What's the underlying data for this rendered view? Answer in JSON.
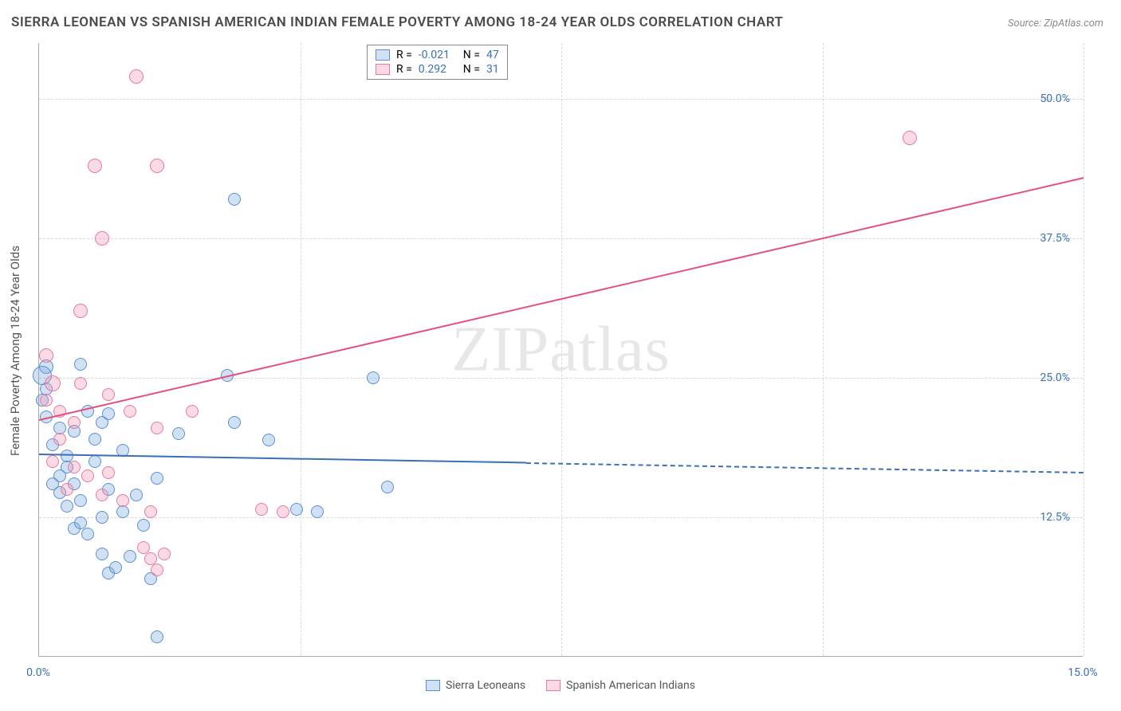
{
  "title": "SIERRA LEONEAN VS SPANISH AMERICAN INDIAN FEMALE POVERTY AMONG 18-24 YEAR OLDS CORRELATION CHART",
  "source": "Source: ZipAtlas.com",
  "watermark": "ZIPatlas",
  "y_axis_label": "Female Poverty Among 18-24 Year Olds",
  "chart": {
    "type": "scatter",
    "background_color": "#ffffff",
    "grid_color": "#d8d8d8",
    "axis_color": "#aaaaaa",
    "xlim": [
      0.0,
      15.0
    ],
    "ylim": [
      0.0,
      55.0
    ],
    "y_ticks": [
      {
        "v": 12.5,
        "label": "12.5%"
      },
      {
        "v": 25.0,
        "label": "25.0%"
      },
      {
        "v": 37.5,
        "label": "37.5%"
      },
      {
        "v": 50.0,
        "label": "50.0%"
      }
    ],
    "x_ticks": [
      {
        "v": 0.0,
        "label": "0.0%"
      },
      {
        "v": 3.75,
        "label": ""
      },
      {
        "v": 7.5,
        "label": ""
      },
      {
        "v": 11.25,
        "label": ""
      },
      {
        "v": 15.0,
        "label": "15.0%"
      }
    ],
    "series": [
      {
        "name": "Sierra Leoneans",
        "fill": "rgba(120,168,224,0.35)",
        "stroke": "#5b8fd6",
        "line_color": "#3b6fb6",
        "r_value": "-0.021",
        "n_value": "47",
        "trend": {
          "y_at_x0": 18.2,
          "y_at_xmax": 16.6,
          "solid_until_x": 7.0
        },
        "points": [
          {
            "x": 0.1,
            "y": 26.0,
            "r": 9
          },
          {
            "x": 0.05,
            "y": 25.2,
            "r": 12
          },
          {
            "x": 0.1,
            "y": 24.0,
            "r": 8
          },
          {
            "x": 0.05,
            "y": 23.0,
            "r": 8
          },
          {
            "x": 0.1,
            "y": 21.5,
            "r": 8
          },
          {
            "x": 0.3,
            "y": 20.5,
            "r": 8
          },
          {
            "x": 0.2,
            "y": 19.0,
            "r": 8
          },
          {
            "x": 0.4,
            "y": 18.0,
            "r": 8
          },
          {
            "x": 0.6,
            "y": 26.2,
            "r": 8
          },
          {
            "x": 0.7,
            "y": 22.0,
            "r": 8
          },
          {
            "x": 0.5,
            "y": 20.2,
            "r": 8
          },
          {
            "x": 0.8,
            "y": 19.5,
            "r": 8
          },
          {
            "x": 0.9,
            "y": 21.0,
            "r": 8
          },
          {
            "x": 0.4,
            "y": 17.0,
            "r": 8
          },
          {
            "x": 0.5,
            "y": 15.5,
            "r": 8
          },
          {
            "x": 0.3,
            "y": 16.2,
            "r": 8
          },
          {
            "x": 0.6,
            "y": 14.0,
            "r": 8
          },
          {
            "x": 0.8,
            "y": 17.5,
            "r": 8
          },
          {
            "x": 1.0,
            "y": 15.0,
            "r": 8
          },
          {
            "x": 1.2,
            "y": 13.0,
            "r": 8
          },
          {
            "x": 0.9,
            "y": 12.5,
            "r": 8
          },
          {
            "x": 0.4,
            "y": 13.5,
            "r": 8
          },
          {
            "x": 0.5,
            "y": 11.5,
            "r": 8
          },
          {
            "x": 0.7,
            "y": 11.0,
            "r": 8
          },
          {
            "x": 1.6,
            "y": 7.0,
            "r": 8
          },
          {
            "x": 1.0,
            "y": 7.5,
            "r": 8
          },
          {
            "x": 1.5,
            "y": 11.8,
            "r": 8
          },
          {
            "x": 1.3,
            "y": 9.0,
            "r": 8
          },
          {
            "x": 1.2,
            "y": 18.5,
            "r": 8
          },
          {
            "x": 2.8,
            "y": 41.0,
            "r": 8
          },
          {
            "x": 2.8,
            "y": 21.0,
            "r": 8
          },
          {
            "x": 3.3,
            "y": 19.4,
            "r": 8
          },
          {
            "x": 2.7,
            "y": 25.2,
            "r": 8
          },
          {
            "x": 4.0,
            "y": 13.0,
            "r": 8
          },
          {
            "x": 4.8,
            "y": 25.0,
            "r": 8
          },
          {
            "x": 5.0,
            "y": 15.2,
            "r": 8
          },
          {
            "x": 3.7,
            "y": 13.2,
            "r": 8
          },
          {
            "x": 1.7,
            "y": 1.8,
            "r": 8
          },
          {
            "x": 2.0,
            "y": 20.0,
            "r": 8
          },
          {
            "x": 1.7,
            "y": 16.0,
            "r": 8
          },
          {
            "x": 1.4,
            "y": 14.5,
            "r": 8
          },
          {
            "x": 0.9,
            "y": 9.2,
            "r": 8
          },
          {
            "x": 1.1,
            "y": 8.0,
            "r": 8
          },
          {
            "x": 0.3,
            "y": 14.7,
            "r": 8
          },
          {
            "x": 1.0,
            "y": 21.8,
            "r": 8
          },
          {
            "x": 0.6,
            "y": 12.0,
            "r": 8
          },
          {
            "x": 0.2,
            "y": 15.5,
            "r": 8
          }
        ]
      },
      {
        "name": "Spanish American Indians",
        "fill": "rgba(242,150,178,0.35)",
        "stroke": "#e87aa0",
        "line_color": "#e5517f",
        "r_value": "0.292",
        "n_value": "31",
        "trend": {
          "y_at_x0": 21.3,
          "y_at_xmax": 43.0,
          "solid_until_x": 15.0
        },
        "points": [
          {
            "x": 1.4,
            "y": 52.0,
            "r": 9
          },
          {
            "x": 0.8,
            "y": 44.0,
            "r": 9
          },
          {
            "x": 1.7,
            "y": 44.0,
            "r": 9
          },
          {
            "x": 0.9,
            "y": 37.5,
            "r": 9
          },
          {
            "x": 0.6,
            "y": 31.0,
            "r": 9
          },
          {
            "x": 0.1,
            "y": 27.0,
            "r": 9
          },
          {
            "x": 0.2,
            "y": 24.5,
            "r": 10
          },
          {
            "x": 0.1,
            "y": 23.0,
            "r": 8
          },
          {
            "x": 0.6,
            "y": 24.5,
            "r": 8
          },
          {
            "x": 1.0,
            "y": 23.5,
            "r": 8
          },
          {
            "x": 0.3,
            "y": 22.0,
            "r": 8
          },
          {
            "x": 0.5,
            "y": 21.0,
            "r": 8
          },
          {
            "x": 1.3,
            "y": 22.0,
            "r": 8
          },
          {
            "x": 2.2,
            "y": 22.0,
            "r": 8
          },
          {
            "x": 1.7,
            "y": 20.5,
            "r": 8
          },
          {
            "x": 0.3,
            "y": 19.5,
            "r": 8
          },
          {
            "x": 0.2,
            "y": 17.5,
            "r": 8
          },
          {
            "x": 0.5,
            "y": 17.0,
            "r": 8
          },
          {
            "x": 0.7,
            "y": 16.2,
            "r": 8
          },
          {
            "x": 1.0,
            "y": 16.5,
            "r": 8
          },
          {
            "x": 0.9,
            "y": 14.5,
            "r": 8
          },
          {
            "x": 1.2,
            "y": 14.0,
            "r": 8
          },
          {
            "x": 1.6,
            "y": 13.0,
            "r": 8
          },
          {
            "x": 1.8,
            "y": 9.2,
            "r": 8
          },
          {
            "x": 1.6,
            "y": 8.8,
            "r": 8
          },
          {
            "x": 1.5,
            "y": 9.8,
            "r": 8
          },
          {
            "x": 1.7,
            "y": 7.8,
            "r": 8
          },
          {
            "x": 3.5,
            "y": 13.0,
            "r": 8
          },
          {
            "x": 3.2,
            "y": 13.2,
            "r": 8
          },
          {
            "x": 0.4,
            "y": 15.0,
            "r": 8
          },
          {
            "x": 12.5,
            "y": 46.5,
            "r": 9
          }
        ]
      }
    ]
  },
  "legend_top": {
    "rows": [
      {
        "swatch_fill": "rgba(120,168,224,0.35)",
        "swatch_stroke": "#5b8fd6",
        "r_label": "R =",
        "r_val": "-0.021",
        "n_label": "N =",
        "n_val": "47"
      },
      {
        "swatch_fill": "rgba(242,150,178,0.35)",
        "swatch_stroke": "#e87aa0",
        "r_label": "R =",
        "r_val": "0.292",
        "n_label": "N =",
        "n_val": "31"
      }
    ]
  },
  "legend_bottom": {
    "items": [
      {
        "swatch_fill": "rgba(120,168,224,0.35)",
        "swatch_stroke": "#5b8fd6",
        "label": "Sierra Leoneans"
      },
      {
        "swatch_fill": "rgba(242,150,178,0.35)",
        "swatch_stroke": "#e87aa0",
        "label": "Spanish American Indians"
      }
    ]
  }
}
